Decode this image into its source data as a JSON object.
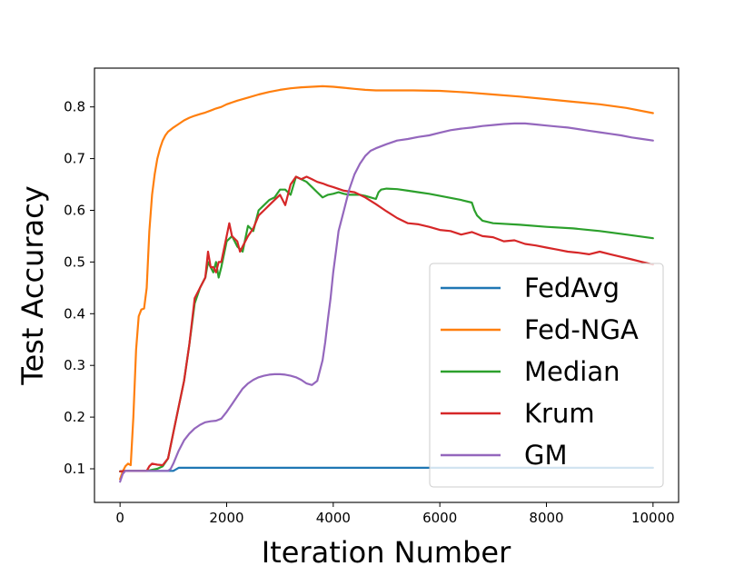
{
  "chart_data": {
    "type": "line",
    "xlabel": "Iteration Number",
    "ylabel": "Test Accuracy",
    "xlim": [
      -480,
      10480
    ],
    "ylim": [
      0.035,
      0.875
    ],
    "xticks": [
      0,
      2000,
      4000,
      6000,
      8000,
      10000
    ],
    "xtick_labels": [
      "0",
      "2000",
      "4000",
      "6000",
      "8000",
      "10000"
    ],
    "yticks": [
      0.1,
      0.2,
      0.3,
      0.4,
      0.5,
      0.6,
      0.7,
      0.8
    ],
    "ytick_labels": [
      "0.1",
      "0.2",
      "0.3",
      "0.4",
      "0.5",
      "0.6",
      "0.7",
      "0.8"
    ],
    "grid": false,
    "legend": "lower-right",
    "series": [
      {
        "name": "FedAvg",
        "color": "#1f77b4",
        "x": [
          0,
          80,
          1000,
          1100,
          10000
        ],
        "y": [
          0.095,
          0.096,
          0.096,
          0.102,
          0.102
        ]
      },
      {
        "name": "Fed-NGA",
        "color": "#ff7f0e",
        "x": [
          0,
          50,
          100,
          150,
          200,
          250,
          300,
          350,
          400,
          450,
          500,
          550,
          600,
          650,
          700,
          750,
          800,
          850,
          900,
          1000,
          1100,
          1200,
          1300,
          1400,
          1500,
          1600,
          1700,
          1800,
          1900,
          2000,
          2200,
          2400,
          2600,
          2800,
          3000,
          3200,
          3400,
          3600,
          3800,
          4000,
          4200,
          4400,
          4600,
          4800,
          5000,
          5500,
          6000,
          6500,
          7000,
          7500,
          8000,
          8500,
          9000,
          9500,
          10000
        ],
        "y": [
          0.08,
          0.095,
          0.105,
          0.11,
          0.107,
          0.2,
          0.33,
          0.395,
          0.408,
          0.41,
          0.45,
          0.56,
          0.63,
          0.67,
          0.7,
          0.72,
          0.735,
          0.745,
          0.752,
          0.76,
          0.767,
          0.774,
          0.779,
          0.783,
          0.786,
          0.789,
          0.793,
          0.797,
          0.8,
          0.805,
          0.812,
          0.818,
          0.824,
          0.829,
          0.833,
          0.836,
          0.838,
          0.839,
          0.84,
          0.839,
          0.837,
          0.835,
          0.833,
          0.832,
          0.832,
          0.832,
          0.831,
          0.828,
          0.824,
          0.82,
          0.815,
          0.81,
          0.805,
          0.798,
          0.788
        ]
      },
      {
        "name": "Median",
        "color": "#2ca02c",
        "x": [
          0,
          100,
          500,
          700,
          800,
          900,
          1000,
          1100,
          1200,
          1300,
          1400,
          1500,
          1600,
          1650,
          1700,
          1750,
          1800,
          1850,
          1900,
          2000,
          2100,
          2200,
          2300,
          2400,
          2500,
          2600,
          2700,
          2800,
          2900,
          3000,
          3100,
          3200,
          3300,
          3400,
          3500,
          3600,
          3700,
          3800,
          3900,
          4000,
          4100,
          4200,
          4300,
          4400,
          4500,
          4600,
          4700,
          4800,
          4850,
          4900,
          5000,
          5200,
          5400,
          5600,
          5800,
          6000,
          6200,
          6400,
          6600,
          6650,
          6700,
          6800,
          7000,
          7500,
          8000,
          8500,
          9000,
          9500,
          10000
        ],
        "y": [
          0.095,
          0.096,
          0.096,
          0.1,
          0.105,
          0.12,
          0.17,
          0.22,
          0.27,
          0.34,
          0.42,
          0.45,
          0.47,
          0.5,
          0.49,
          0.48,
          0.5,
          0.47,
          0.49,
          0.54,
          0.55,
          0.53,
          0.52,
          0.57,
          0.56,
          0.6,
          0.61,
          0.62,
          0.625,
          0.64,
          0.64,
          0.63,
          0.665,
          0.66,
          0.655,
          0.645,
          0.635,
          0.625,
          0.63,
          0.632,
          0.635,
          0.632,
          0.63,
          0.63,
          0.63,
          0.628,
          0.625,
          0.622,
          0.635,
          0.64,
          0.642,
          0.641,
          0.638,
          0.635,
          0.632,
          0.628,
          0.624,
          0.62,
          0.615,
          0.6,
          0.59,
          0.58,
          0.575,
          0.572,
          0.568,
          0.565,
          0.56,
          0.553,
          0.546
        ]
      },
      {
        "name": "Krum",
        "color": "#d62728",
        "x": [
          0,
          100,
          500,
          550,
          600,
          700,
          800,
          900,
          1000,
          1100,
          1200,
          1300,
          1400,
          1500,
          1600,
          1650,
          1700,
          1750,
          1800,
          1850,
          1900,
          2000,
          2050,
          2100,
          2200,
          2250,
          2300,
          2400,
          2500,
          2600,
          2700,
          2800,
          2900,
          3000,
          3100,
          3200,
          3300,
          3400,
          3500,
          3600,
          3700,
          3800,
          3900,
          4000,
          4200,
          4400,
          4600,
          4800,
          5000,
          5200,
          5400,
          5600,
          5800,
          6000,
          6200,
          6400,
          6600,
          6800,
          7000,
          7200,
          7400,
          7600,
          7800,
          8000,
          8200,
          8400,
          8600,
          8800,
          9000,
          9200,
          9400,
          9600,
          9800,
          10000
        ],
        "y": [
          0.095,
          0.096,
          0.096,
          0.105,
          0.11,
          0.108,
          0.107,
          0.12,
          0.17,
          0.22,
          0.27,
          0.34,
          0.43,
          0.45,
          0.47,
          0.52,
          0.49,
          0.49,
          0.48,
          0.5,
          0.5,
          0.55,
          0.575,
          0.55,
          0.54,
          0.52,
          0.53,
          0.55,
          0.565,
          0.59,
          0.6,
          0.61,
          0.62,
          0.63,
          0.61,
          0.65,
          0.665,
          0.66,
          0.665,
          0.66,
          0.655,
          0.652,
          0.648,
          0.645,
          0.638,
          0.635,
          0.625,
          0.612,
          0.598,
          0.585,
          0.575,
          0.573,
          0.568,
          0.562,
          0.56,
          0.553,
          0.558,
          0.55,
          0.548,
          0.54,
          0.542,
          0.535,
          0.532,
          0.528,
          0.524,
          0.52,
          0.518,
          0.515,
          0.52,
          0.515,
          0.51,
          0.505,
          0.5,
          0.495
        ]
      },
      {
        "name": "GM",
        "color": "#9467bd",
        "x": [
          0,
          50,
          100,
          500,
          900,
          950,
          1000,
          1100,
          1200,
          1300,
          1400,
          1500,
          1600,
          1700,
          1800,
          1900,
          2000,
          2100,
          2200,
          2300,
          2400,
          2500,
          2600,
          2700,
          2800,
          2900,
          3000,
          3100,
          3200,
          3300,
          3400,
          3500,
          3600,
          3700,
          3800,
          3850,
          3900,
          3950,
          4000,
          4050,
          4100,
          4200,
          4300,
          4400,
          4500,
          4600,
          4700,
          4800,
          5000,
          5200,
          5400,
          5600,
          5800,
          6000,
          6200,
          6400,
          6600,
          6800,
          7000,
          7200,
          7400,
          7600,
          7800,
          8000,
          8200,
          8400,
          8600,
          8800,
          9000,
          9200,
          9400,
          9600,
          9800,
          10000
        ],
        "y": [
          0.075,
          0.09,
          0.096,
          0.096,
          0.096,
          0.1,
          0.11,
          0.135,
          0.155,
          0.168,
          0.178,
          0.185,
          0.19,
          0.192,
          0.193,
          0.197,
          0.21,
          0.225,
          0.24,
          0.255,
          0.265,
          0.272,
          0.277,
          0.28,
          0.282,
          0.283,
          0.283,
          0.282,
          0.28,
          0.277,
          0.272,
          0.265,
          0.262,
          0.27,
          0.31,
          0.345,
          0.39,
          0.43,
          0.48,
          0.52,
          0.56,
          0.6,
          0.64,
          0.67,
          0.69,
          0.705,
          0.715,
          0.72,
          0.728,
          0.735,
          0.738,
          0.742,
          0.745,
          0.75,
          0.755,
          0.758,
          0.76,
          0.763,
          0.765,
          0.767,
          0.768,
          0.768,
          0.766,
          0.764,
          0.762,
          0.76,
          0.757,
          0.754,
          0.751,
          0.748,
          0.745,
          0.741,
          0.738,
          0.735
        ]
      }
    ]
  }
}
